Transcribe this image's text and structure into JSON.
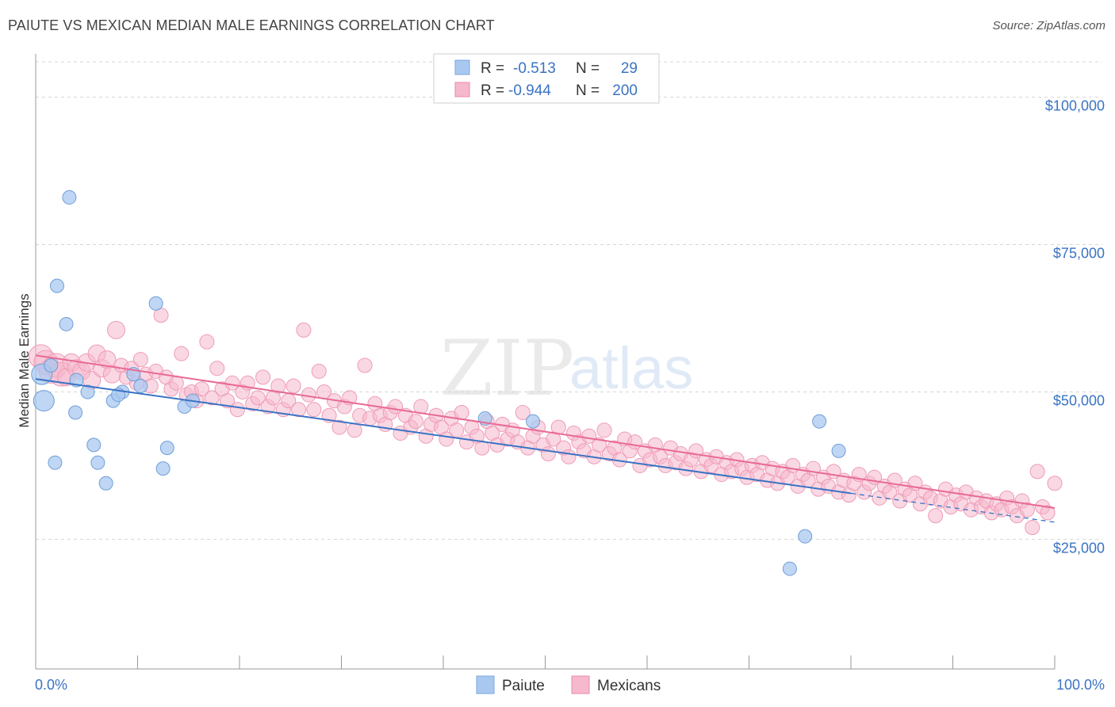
{
  "header": {
    "title": "PAIUTE VS MEXICAN MEDIAN MALE EARNINGS CORRELATION CHART",
    "source": "Source: ZipAtlas.com"
  },
  "watermark": {
    "zip": "ZIP",
    "atlas": "atlas"
  },
  "legend_box": {
    "rows": [
      {
        "r_label": "R =",
        "r_value": "-0.513",
        "n_label": "N =",
        "n_value": "29"
      },
      {
        "r_label": "R =",
        "r_value": "-0.944",
        "n_label": "N =",
        "n_value": "200"
      }
    ]
  },
  "bottom_legend": {
    "items": [
      "Paiute",
      "Mexicans"
    ]
  },
  "chart_data": {
    "type": "scatter",
    "title": "PAIUTE VS MEXICAN MEDIAN MALE EARNINGS CORRELATION CHART",
    "xlabel": "",
    "ylabel": "Median Male Earnings",
    "xlim": [
      0,
      100
    ],
    "ylim": [
      3000,
      106000
    ],
    "x_tick_labels": [
      "0.0%",
      "100.0%"
    ],
    "y_ticks": [
      25000,
      50000,
      75000,
      100000
    ],
    "y_tick_labels": [
      "$25,000",
      "$50,000",
      "$75,000",
      "$100,000"
    ],
    "grid": true,
    "legend_position": "top-center",
    "colors": {
      "Paiute": "#a9c8f0",
      "Paiute_line": "#3a73c4",
      "Mexicans": "#f6b8cc",
      "Mexicans_line": "#e86a94"
    },
    "series": [
      {
        "name": "Paiute",
        "r": -0.513,
        "n": 29,
        "trend": {
          "x": [
            0,
            80
          ],
          "y": [
            52200,
            32800
          ],
          "dashed_to_x": 100,
          "dashed_to_y": 27900
        },
        "points": [
          [
            3.3,
            83000
          ],
          [
            2.1,
            68000
          ],
          [
            11.8,
            65000
          ],
          [
            3.0,
            61500
          ],
          [
            0.6,
            53000
          ],
          [
            0.8,
            48500
          ],
          [
            1.5,
            54500
          ],
          [
            4.0,
            52000
          ],
          [
            5.1,
            50000
          ],
          [
            8.5,
            50000
          ],
          [
            9.6,
            53000
          ],
          [
            10.3,
            51000
          ],
          [
            7.6,
            48500
          ],
          [
            8.1,
            49500
          ],
          [
            14.6,
            47500
          ],
          [
            15.4,
            48500
          ],
          [
            3.9,
            46500
          ],
          [
            5.7,
            41000
          ],
          [
            12.9,
            40500
          ],
          [
            1.9,
            38000
          ],
          [
            6.1,
            38000
          ],
          [
            12.5,
            37000
          ],
          [
            6.9,
            34500
          ],
          [
            44.1,
            45500
          ],
          [
            48.8,
            45000
          ],
          [
            76.9,
            45000
          ],
          [
            78.8,
            40000
          ],
          [
            75.5,
            25500
          ],
          [
            74.0,
            20000
          ]
        ]
      },
      {
        "name": "Mexicans",
        "r": -0.944,
        "n": 200,
        "trend": {
          "x": [
            0,
            100
          ],
          "y": [
            56200,
            30300
          ]
        },
        "points": [
          [
            0.5,
            56000
          ],
          [
            1.0,
            55000
          ],
          [
            1.5,
            53500
          ],
          [
            2.0,
            54500
          ],
          [
            2.5,
            53000
          ],
          [
            3.0,
            52500
          ],
          [
            3.5,
            55000
          ],
          [
            4.0,
            54000
          ],
          [
            4.5,
            53500
          ],
          [
            5.0,
            55000
          ],
          [
            5.5,
            52000
          ],
          [
            6.0,
            56500
          ],
          [
            6.5,
            54000
          ],
          [
            7.0,
            55500
          ],
          [
            7.5,
            53000
          ],
          [
            7.9,
            60500
          ],
          [
            8.4,
            54500
          ],
          [
            8.9,
            52500
          ],
          [
            9.4,
            54000
          ],
          [
            9.9,
            51500
          ],
          [
            10.3,
            55500
          ],
          [
            10.8,
            53000
          ],
          [
            11.3,
            51000
          ],
          [
            11.8,
            53500
          ],
          [
            12.3,
            63000
          ],
          [
            12.8,
            52500
          ],
          [
            13.3,
            50500
          ],
          [
            13.8,
            51500
          ],
          [
            14.3,
            56500
          ],
          [
            14.8,
            49500
          ],
          [
            15.3,
            50000
          ],
          [
            15.8,
            48500
          ],
          [
            16.3,
            50500
          ],
          [
            16.8,
            58500
          ],
          [
            17.3,
            49000
          ],
          [
            17.8,
            54000
          ],
          [
            18.3,
            50500
          ],
          [
            18.8,
            48500
          ],
          [
            19.3,
            51500
          ],
          [
            19.8,
            47000
          ],
          [
            20.3,
            50000
          ],
          [
            20.8,
            51500
          ],
          [
            21.3,
            48000
          ],
          [
            21.8,
            49000
          ],
          [
            22.3,
            52500
          ],
          [
            22.8,
            47500
          ],
          [
            23.3,
            49000
          ],
          [
            23.8,
            51000
          ],
          [
            24.3,
            47000
          ],
          [
            24.8,
            48500
          ],
          [
            25.3,
            51000
          ],
          [
            25.8,
            47000
          ],
          [
            26.3,
            60500
          ],
          [
            26.8,
            49500
          ],
          [
            27.3,
            47000
          ],
          [
            27.8,
            53500
          ],
          [
            28.3,
            50000
          ],
          [
            28.8,
            46000
          ],
          [
            29.3,
            48500
          ],
          [
            29.8,
            44000
          ],
          [
            30.3,
            47500
          ],
          [
            30.8,
            49000
          ],
          [
            31.3,
            43500
          ],
          [
            31.8,
            46000
          ],
          [
            32.3,
            54500
          ],
          [
            32.8,
            45500
          ],
          [
            33.3,
            48000
          ],
          [
            33.8,
            46000
          ],
          [
            34.3,
            44500
          ],
          [
            34.8,
            46500
          ],
          [
            35.3,
            47500
          ],
          [
            35.8,
            43000
          ],
          [
            36.3,
            46000
          ],
          [
            36.8,
            44000
          ],
          [
            37.3,
            45000
          ],
          [
            37.8,
            47500
          ],
          [
            38.3,
            42500
          ],
          [
            38.8,
            44500
          ],
          [
            39.3,
            46000
          ],
          [
            39.8,
            44000
          ],
          [
            40.3,
            42000
          ],
          [
            40.8,
            45500
          ],
          [
            41.3,
            43500
          ],
          [
            41.8,
            46500
          ],
          [
            42.3,
            41500
          ],
          [
            42.8,
            44000
          ],
          [
            43.3,
            42500
          ],
          [
            43.8,
            40500
          ],
          [
            44.3,
            45000
          ],
          [
            44.8,
            43000
          ],
          [
            45.3,
            41000
          ],
          [
            45.8,
            44500
          ],
          [
            46.3,
            42000
          ],
          [
            46.8,
            43500
          ],
          [
            47.3,
            41500
          ],
          [
            47.8,
            46500
          ],
          [
            48.3,
            40500
          ],
          [
            48.8,
            42500
          ],
          [
            49.3,
            44000
          ],
          [
            49.8,
            41000
          ],
          [
            50.3,
            39500
          ],
          [
            50.8,
            42000
          ],
          [
            51.3,
            44000
          ],
          [
            51.8,
            40500
          ],
          [
            52.3,
            39000
          ],
          [
            52.8,
            43000
          ],
          [
            53.3,
            41500
          ],
          [
            53.8,
            40000
          ],
          [
            54.3,
            42500
          ],
          [
            54.8,
            39000
          ],
          [
            55.3,
            41000
          ],
          [
            55.8,
            43500
          ],
          [
            56.3,
            39500
          ],
          [
            56.8,
            40500
          ],
          [
            57.3,
            38500
          ],
          [
            57.8,
            42000
          ],
          [
            58.3,
            40000
          ],
          [
            58.8,
            41500
          ],
          [
            59.3,
            37500
          ],
          [
            59.8,
            40000
          ],
          [
            60.3,
            38500
          ],
          [
            60.8,
            41000
          ],
          [
            61.3,
            39000
          ],
          [
            61.8,
            37500
          ],
          [
            62.3,
            40500
          ],
          [
            62.8,
            38000
          ],
          [
            63.3,
            39500
          ],
          [
            63.8,
            37000
          ],
          [
            64.3,
            38500
          ],
          [
            64.8,
            40000
          ],
          [
            65.3,
            36500
          ],
          [
            65.8,
            38500
          ],
          [
            66.3,
            37500
          ],
          [
            66.8,
            39000
          ],
          [
            67.3,
            36000
          ],
          [
            67.8,
            38000
          ],
          [
            68.3,
            36500
          ],
          [
            68.8,
            38500
          ],
          [
            69.3,
            37000
          ],
          [
            69.8,
            35500
          ],
          [
            70.3,
            37500
          ],
          [
            70.8,
            36000
          ],
          [
            71.3,
            38000
          ],
          [
            71.8,
            35000
          ],
          [
            72.3,
            37000
          ],
          [
            72.8,
            34500
          ],
          [
            73.3,
            36500
          ],
          [
            73.8,
            35500
          ],
          [
            74.3,
            37500
          ],
          [
            74.8,
            34000
          ],
          [
            75.3,
            36000
          ],
          [
            75.8,
            35000
          ],
          [
            76.3,
            37000
          ],
          [
            76.8,
            33500
          ],
          [
            77.3,
            35500
          ],
          [
            77.8,
            34000
          ],
          [
            78.3,
            36500
          ],
          [
            78.8,
            33000
          ],
          [
            79.3,
            35000
          ],
          [
            79.8,
            32500
          ],
          [
            80.3,
            34500
          ],
          [
            80.8,
            36000
          ],
          [
            81.3,
            33000
          ],
          [
            81.8,
            34500
          ],
          [
            82.3,
            35500
          ],
          [
            82.8,
            32000
          ],
          [
            83.3,
            34000
          ],
          [
            83.8,
            33000
          ],
          [
            84.3,
            35000
          ],
          [
            84.8,
            31500
          ],
          [
            85.3,
            33500
          ],
          [
            85.8,
            32500
          ],
          [
            86.3,
            34500
          ],
          [
            86.8,
            31000
          ],
          [
            87.3,
            33000
          ],
          [
            87.8,
            32000
          ],
          [
            88.3,
            29000
          ],
          [
            88.8,
            31500
          ],
          [
            89.3,
            33500
          ],
          [
            89.8,
            30500
          ],
          [
            90.3,
            32500
          ],
          [
            90.8,
            31000
          ],
          [
            91.3,
            33000
          ],
          [
            91.8,
            30000
          ],
          [
            92.3,
            32000
          ],
          [
            92.8,
            30500
          ],
          [
            93.3,
            31500
          ],
          [
            93.8,
            29500
          ],
          [
            94.3,
            31000
          ],
          [
            94.8,
            30000
          ],
          [
            95.3,
            32000
          ],
          [
            95.8,
            30500
          ],
          [
            96.3,
            29000
          ],
          [
            96.8,
            31500
          ],
          [
            97.3,
            30000
          ],
          [
            97.8,
            27000
          ],
          [
            98.3,
            36500
          ],
          [
            98.8,
            30500
          ],
          [
            99.3,
            29500
          ],
          [
            100.0,
            34500
          ]
        ]
      }
    ]
  }
}
